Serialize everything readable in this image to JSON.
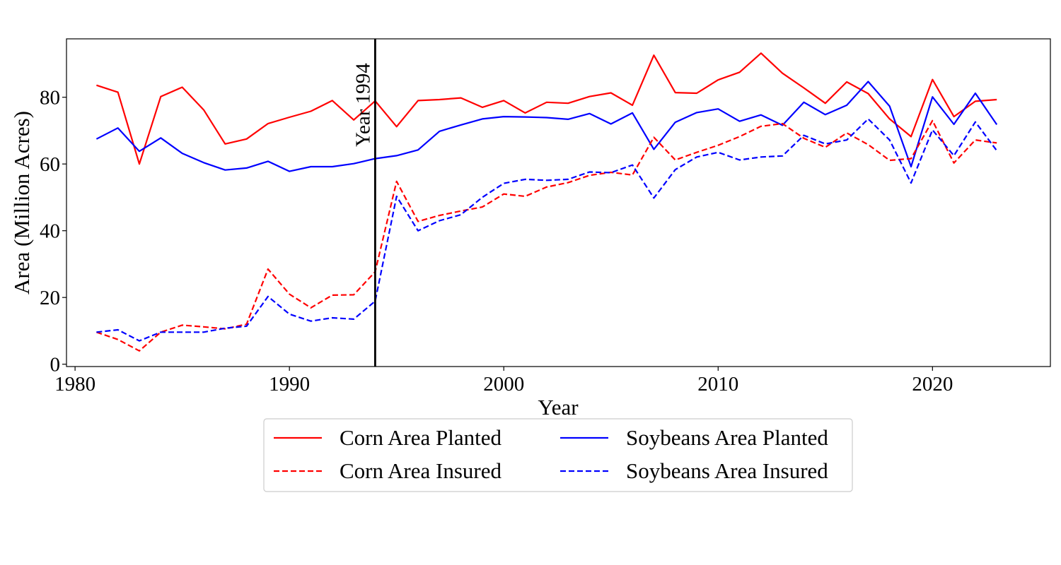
{
  "chart_data": {
    "type": "line",
    "xlabel": "Year",
    "ylabel": "Area (Million Acres)",
    "xlim": [
      1979.6,
      2025.5
    ],
    "ylim": [
      -0.7,
      97.5
    ],
    "xticks": [
      1980,
      1990,
      2000,
      2010,
      2020
    ],
    "yticks": [
      0,
      20,
      40,
      60,
      80
    ],
    "x": [
      1981,
      1982,
      1983,
      1984,
      1985,
      1986,
      1987,
      1988,
      1989,
      1990,
      1991,
      1992,
      1993,
      1994,
      1995,
      1996,
      1997,
      1998,
      1999,
      2000,
      2001,
      2002,
      2003,
      2004,
      2005,
      2006,
      2007,
      2008,
      2009,
      2010,
      2011,
      2012,
      2013,
      2014,
      2015,
      2016,
      2017,
      2018,
      2019,
      2020,
      2021,
      2022,
      2023
    ],
    "series": [
      {
        "name": "Corn Area Planted",
        "color": "#ff0000",
        "style": "solid",
        "values": [
          83.6,
          81.5,
          60.0,
          80.2,
          83.0,
          76.2,
          66.0,
          67.5,
          72.1,
          74.0,
          75.8,
          79.0,
          73.2,
          78.9,
          71.2,
          79.0,
          79.3,
          79.8,
          77.0,
          79.0,
          75.3,
          78.5,
          78.2,
          80.2,
          81.3,
          77.6,
          92.6,
          81.4,
          81.2,
          85.2,
          87.5,
          93.2,
          87.2,
          82.8,
          78.2,
          84.6,
          81.1,
          73.5,
          68.2,
          85.3,
          74.2,
          78.8,
          79.3
        ]
      },
      {
        "name": "Soybeans Area Planted",
        "color": "#0000ff",
        "style": "solid",
        "values": [
          67.5,
          70.8,
          63.8,
          67.8,
          63.2,
          60.4,
          58.2,
          58.8,
          60.8,
          57.8,
          59.2,
          59.2,
          60.1,
          61.6,
          62.5,
          64.2,
          69.8,
          71.7,
          73.5,
          74.2,
          74.1,
          73.9,
          73.4,
          75.1,
          72.0,
          75.3,
          64.4,
          72.5,
          75.4,
          76.5,
          72.8,
          74.7,
          71.6,
          78.5,
          74.8,
          77.6,
          84.7,
          77.3,
          59.2,
          80.1,
          71.9,
          81.2,
          71.8
        ]
      },
      {
        "name": "Corn Area Insured",
        "color": "#ff0000",
        "style": "dashed",
        "values": [
          9.6,
          7.4,
          4.0,
          9.6,
          11.7,
          11.2,
          10.6,
          12.0,
          28.5,
          21.0,
          16.9,
          20.7,
          20.8,
          27.7,
          54.8,
          42.8,
          44.6,
          45.9,
          47.1,
          51.0,
          50.3,
          53.1,
          54.4,
          56.6,
          57.5,
          56.7,
          68.0,
          61.2,
          63.5,
          65.6,
          68.2,
          71.3,
          72.1,
          67.7,
          65.0,
          69.3,
          65.8,
          61.1,
          61.6,
          73.0,
          60.3,
          67.2,
          66.3
        ]
      },
      {
        "name": "Soybeans Area Insured",
        "color": "#0000ff",
        "style": "dashed",
        "values": [
          9.6,
          10.3,
          7.0,
          9.6,
          9.6,
          9.6,
          10.8,
          11.4,
          20.3,
          15.0,
          12.9,
          13.9,
          13.5,
          18.9,
          50.3,
          40.0,
          43.0,
          44.8,
          50.0,
          54.2,
          55.4,
          55.1,
          55.4,
          57.6,
          57.4,
          59.7,
          49.8,
          58.3,
          62.1,
          63.5,
          61.2,
          62.1,
          62.4,
          68.6,
          66.0,
          67.2,
          73.5,
          67.2,
          54.3,
          70.2,
          62.5,
          72.6,
          64.0
        ]
      }
    ],
    "annotations": [
      {
        "type": "vline",
        "x": 1994,
        "label": "Year 1994",
        "color": "#000000"
      }
    ],
    "legend": {
      "placement": "bottom-center",
      "columns": 2,
      "order": [
        "Corn Area Planted",
        "Corn Area Insured",
        "Soybeans Area Planted",
        "Soybeans Area Insured"
      ]
    },
    "grid": false
  }
}
